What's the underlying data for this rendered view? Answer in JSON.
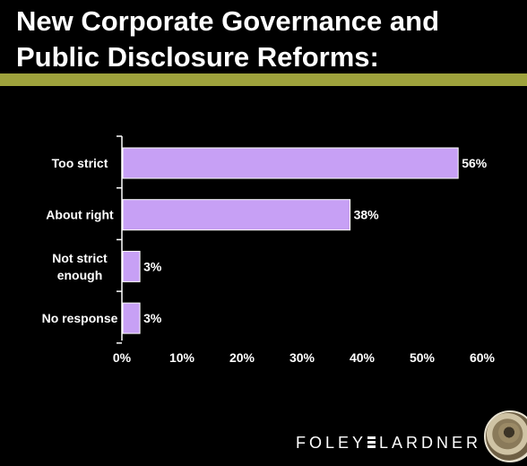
{
  "slide": {
    "title": "New Corporate Governance and\nPublic Disclosure Reforms:"
  },
  "colors": {
    "background": "#000000",
    "accent_rule": "#9ea23c",
    "bar_fill": "#c7a0f5",
    "text": "#ffffff"
  },
  "chart_data": {
    "type": "bar",
    "orientation": "horizontal",
    "title": "",
    "xlabel": "",
    "ylabel": "",
    "categories": [
      [
        "Too strict"
      ],
      [
        "About right"
      ],
      [
        "Not strict",
        "enough"
      ],
      [
        "No response"
      ]
    ],
    "values": [
      56,
      38,
      3,
      3
    ],
    "value_labels": [
      "56%",
      "38%",
      "3%",
      "3%"
    ],
    "xlim": [
      0,
      60
    ],
    "x_ticks": [
      0,
      10,
      20,
      30,
      40,
      50,
      60
    ],
    "x_tick_labels": [
      "0%",
      "10%",
      "20%",
      "30%",
      "40%",
      "50%",
      "60%"
    ],
    "grid": false,
    "legend": "none"
  },
  "footer": {
    "brand_left": "FOLEY",
    "brand_right": "LARDNER",
    "seal_icon": "firm-seal-logo"
  }
}
